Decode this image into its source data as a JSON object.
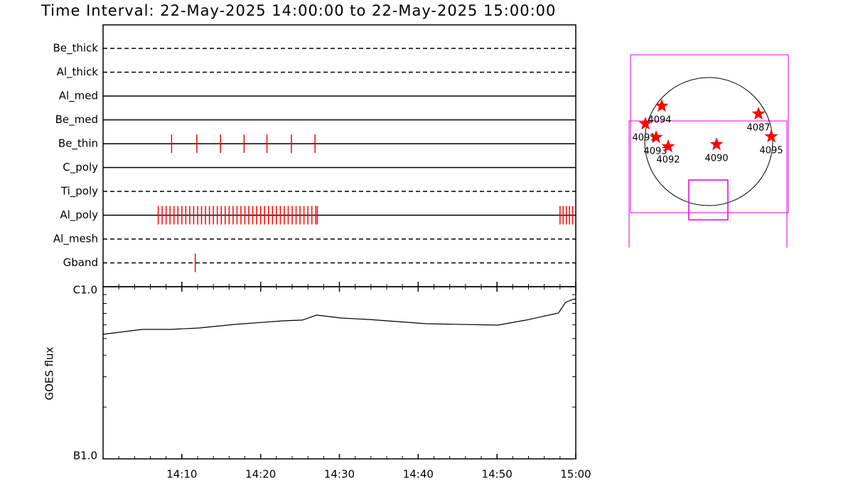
{
  "title": "Time Interval: 22-May-2025 14:00:00 to 22-May-2025 15:00:00",
  "chart_data": [
    {
      "type": "event",
      "mark_color": "#ff0000",
      "xlim": [
        0,
        60
      ],
      "series": [
        {
          "name": "Be_thick",
          "dashed": true,
          "values": []
        },
        {
          "name": "Al_thick",
          "dashed": true,
          "values": []
        },
        {
          "name": "Al_med",
          "dashed": false,
          "values": []
        },
        {
          "name": "Be_med",
          "dashed": false,
          "values": []
        },
        {
          "name": "Be_thin",
          "dashed": false,
          "values": [
            8.7,
            11.9,
            14.9,
            17.9,
            20.8,
            23.9,
            26.9
          ]
        },
        {
          "name": "C_poly",
          "dashed": false,
          "values": []
        },
        {
          "name": "Ti_poly",
          "dashed": true,
          "values": []
        },
        {
          "name": "Al_poly",
          "dashed": false,
          "values": [
            7.0,
            7.5,
            8.0,
            8.5,
            9.0,
            9.5,
            10.0,
            10.5,
            11.0,
            11.5,
            12.0,
            12.5,
            13.0,
            13.5,
            14.0,
            14.5,
            15.0,
            15.5,
            16.0,
            16.5,
            17.0,
            17.5,
            18.0,
            18.5,
            19.0,
            19.5,
            20.0,
            20.5,
            21.0,
            21.5,
            22.0,
            22.5,
            23.0,
            23.5,
            24.0,
            24.5,
            25.0,
            25.5,
            26.0,
            26.5,
            27.0,
            27.2,
            58.0,
            58.4,
            58.8,
            59.2,
            59.6
          ]
        },
        {
          "name": "Al_mesh",
          "dashed": true,
          "values": []
        },
        {
          "name": "Gband",
          "dashed": true,
          "values": [
            11.7
          ]
        }
      ]
    },
    {
      "type": "line",
      "ylabel": "GOES flux",
      "color": "#000000",
      "ylog": true,
      "x": [
        0,
        5,
        8.6,
        12.2,
        16.7,
        23,
        25.3,
        27.1,
        30.2,
        33.8,
        41,
        50.1,
        53.7,
        57.8,
        58.7,
        59.6,
        60
      ],
      "values": [
        5.29e-07,
        5.65e-07,
        5.65e-07,
        5.76e-07,
        6.04e-07,
        6.34e-07,
        6.4e-07,
        6.84e-07,
        6.58e-07,
        6.45e-07,
        6.1e-07,
        5.98e-07,
        6.4e-07,
        7.03e-07,
        8.11e-07,
        8.43e-07,
        8.5e-07
      ],
      "xlim": [
        0,
        60
      ],
      "xticks": [
        {
          "value": 10,
          "label": "14:10"
        },
        {
          "value": 20,
          "label": "14:20"
        },
        {
          "value": 30,
          "label": "14:30"
        },
        {
          "value": 40,
          "label": "14:40"
        },
        {
          "value": 50,
          "label": "14:50"
        },
        {
          "value": 60,
          "label": "15:00"
        }
      ],
      "minor_xticks": [
        2,
        4,
        6,
        8,
        12,
        14,
        16,
        18,
        22,
        24,
        26,
        28,
        32,
        34,
        36,
        38,
        42,
        44,
        46,
        48,
        52,
        54,
        56,
        58
      ],
      "ylim": [
        1e-07,
        1e-06
      ],
      "yticks": [
        {
          "value": 1e-07,
          "label": "B1.0"
        },
        {
          "value": 1e-06,
          "label": "C1.0"
        }
      ],
      "minor_yticks": [
        2e-07,
        3e-07,
        4e-07,
        5e-07,
        6e-07,
        7e-07,
        8e-07,
        9e-07
      ]
    }
  ],
  "map": {
    "regions": [
      {
        "label": "4094"
      },
      {
        "label": "4087"
      },
      {
        "label": "4091"
      },
      {
        "label": "4093"
      },
      {
        "label": "4092"
      },
      {
        "label": "4090"
      },
      {
        "label": "4095"
      }
    ]
  }
}
